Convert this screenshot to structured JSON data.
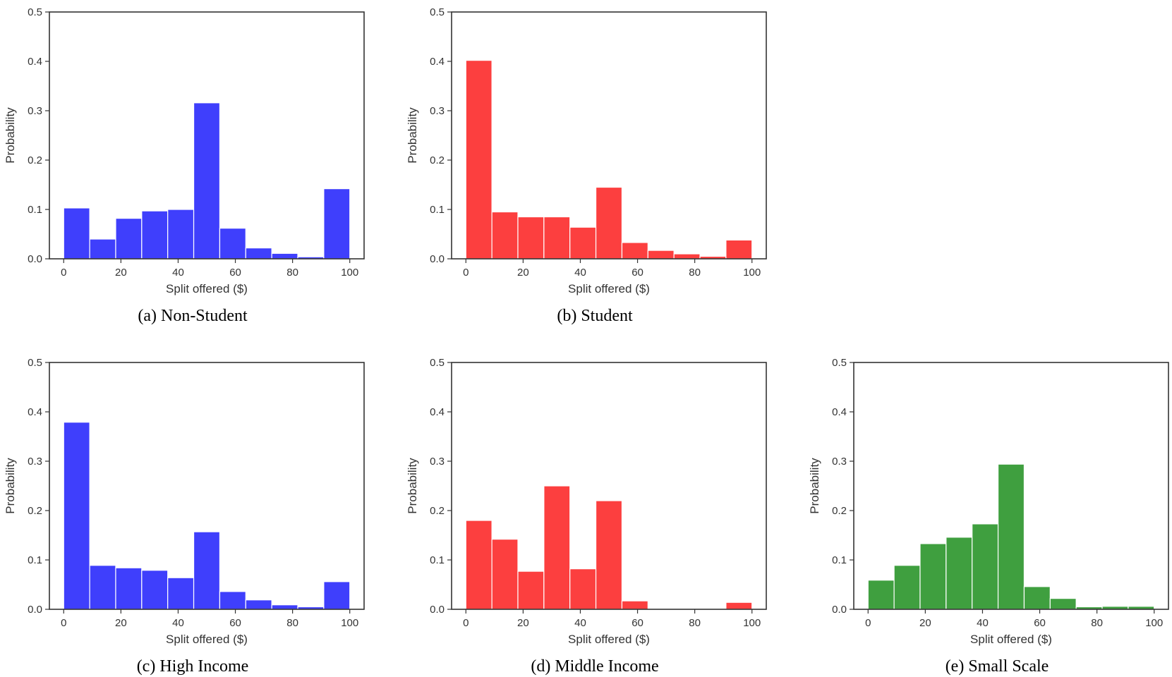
{
  "chart_data": [
    {
      "type": "bar",
      "caption": "(a) Non-Student",
      "xlabel": "Split offered ($)",
      "ylabel": "Probability",
      "xlim": [
        0,
        100
      ],
      "ylim": [
        0,
        0.5
      ],
      "xticks": [
        "0",
        "20",
        "40",
        "60",
        "80",
        "100"
      ],
      "yticks": [
        "0.0",
        "0.1",
        "0.2",
        "0.3",
        "0.4",
        "0.5"
      ],
      "bin_edges": [
        0,
        9.09,
        18.18,
        27.27,
        36.36,
        45.45,
        54.55,
        63.64,
        72.73,
        81.82,
        90.91,
        100
      ],
      "values": [
        0.103,
        0.04,
        0.082,
        0.097,
        0.1,
        0.316,
        0.062,
        0.022,
        0.011,
        0.004,
        0.142
      ],
      "color": "#3f3ffc",
      "grid": false,
      "legend": "none"
    },
    {
      "type": "bar",
      "caption": "(b) Student",
      "xlabel": "Split offered ($)",
      "ylabel": "Probability",
      "xlim": [
        0,
        100
      ],
      "ylim": [
        0,
        0.5
      ],
      "xticks": [
        "0",
        "20",
        "40",
        "60",
        "80",
        "100"
      ],
      "yticks": [
        "0.0",
        "0.1",
        "0.2",
        "0.3",
        "0.4",
        "0.5"
      ],
      "bin_edges": [
        0,
        9.09,
        18.18,
        27.27,
        36.36,
        45.45,
        54.55,
        63.64,
        72.73,
        81.82,
        90.91,
        100
      ],
      "values": [
        0.402,
        0.095,
        0.085,
        0.085,
        0.064,
        0.145,
        0.033,
        0.017,
        0.01,
        0.005,
        0.038
      ],
      "color": "#fc3f3f",
      "grid": false,
      "legend": "none"
    },
    {
      "type": "bar",
      "caption": "(c) High Income",
      "xlabel": "Split offered ($)",
      "ylabel": "Probability",
      "xlim": [
        0,
        100
      ],
      "ylim": [
        0,
        0.5
      ],
      "xticks": [
        "0",
        "20",
        "40",
        "60",
        "80",
        "100"
      ],
      "yticks": [
        "0.0",
        "0.1",
        "0.2",
        "0.3",
        "0.4",
        "0.5"
      ],
      "bin_edges": [
        0,
        9.09,
        18.18,
        27.27,
        36.36,
        45.45,
        54.55,
        63.64,
        72.73,
        81.82,
        90.91,
        100
      ],
      "values": [
        0.379,
        0.089,
        0.084,
        0.079,
        0.064,
        0.157,
        0.036,
        0.019,
        0.009,
        0.005,
        0.056
      ],
      "color": "#3f3ffc",
      "grid": false,
      "legend": "none"
    },
    {
      "type": "bar",
      "caption": "(d) Middle Income",
      "xlabel": "Split offered ($)",
      "ylabel": "Probability",
      "xlim": [
        0,
        100
      ],
      "ylim": [
        0,
        0.5
      ],
      "xticks": [
        "0",
        "20",
        "40",
        "60",
        "80",
        "100"
      ],
      "yticks": [
        "0.0",
        "0.1",
        "0.2",
        "0.3",
        "0.4",
        "0.5"
      ],
      "bin_edges": [
        0,
        9.09,
        18.18,
        27.27,
        36.36,
        45.45,
        54.55,
        63.64,
        72.73,
        81.82,
        90.91,
        100
      ],
      "values": [
        0.18,
        0.142,
        0.077,
        0.25,
        0.082,
        0.22,
        0.017,
        0,
        0,
        0,
        0.014
      ],
      "color": "#fc3f3f",
      "grid": false,
      "legend": "none"
    },
    {
      "type": "bar",
      "caption": "(e) Small Scale",
      "xlabel": "Split offered ($)",
      "ylabel": "Probability",
      "xlim": [
        0,
        100
      ],
      "ylim": [
        0,
        0.5
      ],
      "xticks": [
        "0",
        "20",
        "40",
        "60",
        "80",
        "100"
      ],
      "yticks": [
        "0.0",
        "0.1",
        "0.2",
        "0.3",
        "0.4",
        "0.5"
      ],
      "bin_edges": [
        0,
        9.09,
        18.18,
        27.27,
        36.36,
        45.45,
        54.55,
        63.64,
        72.73,
        81.82,
        90.91,
        100
      ],
      "values": [
        0.059,
        0.089,
        0.133,
        0.146,
        0.173,
        0.294,
        0.046,
        0.022,
        0.005,
        0.006,
        0.006
      ],
      "color": "#3f9f3f",
      "grid": false,
      "legend": "none"
    }
  ]
}
